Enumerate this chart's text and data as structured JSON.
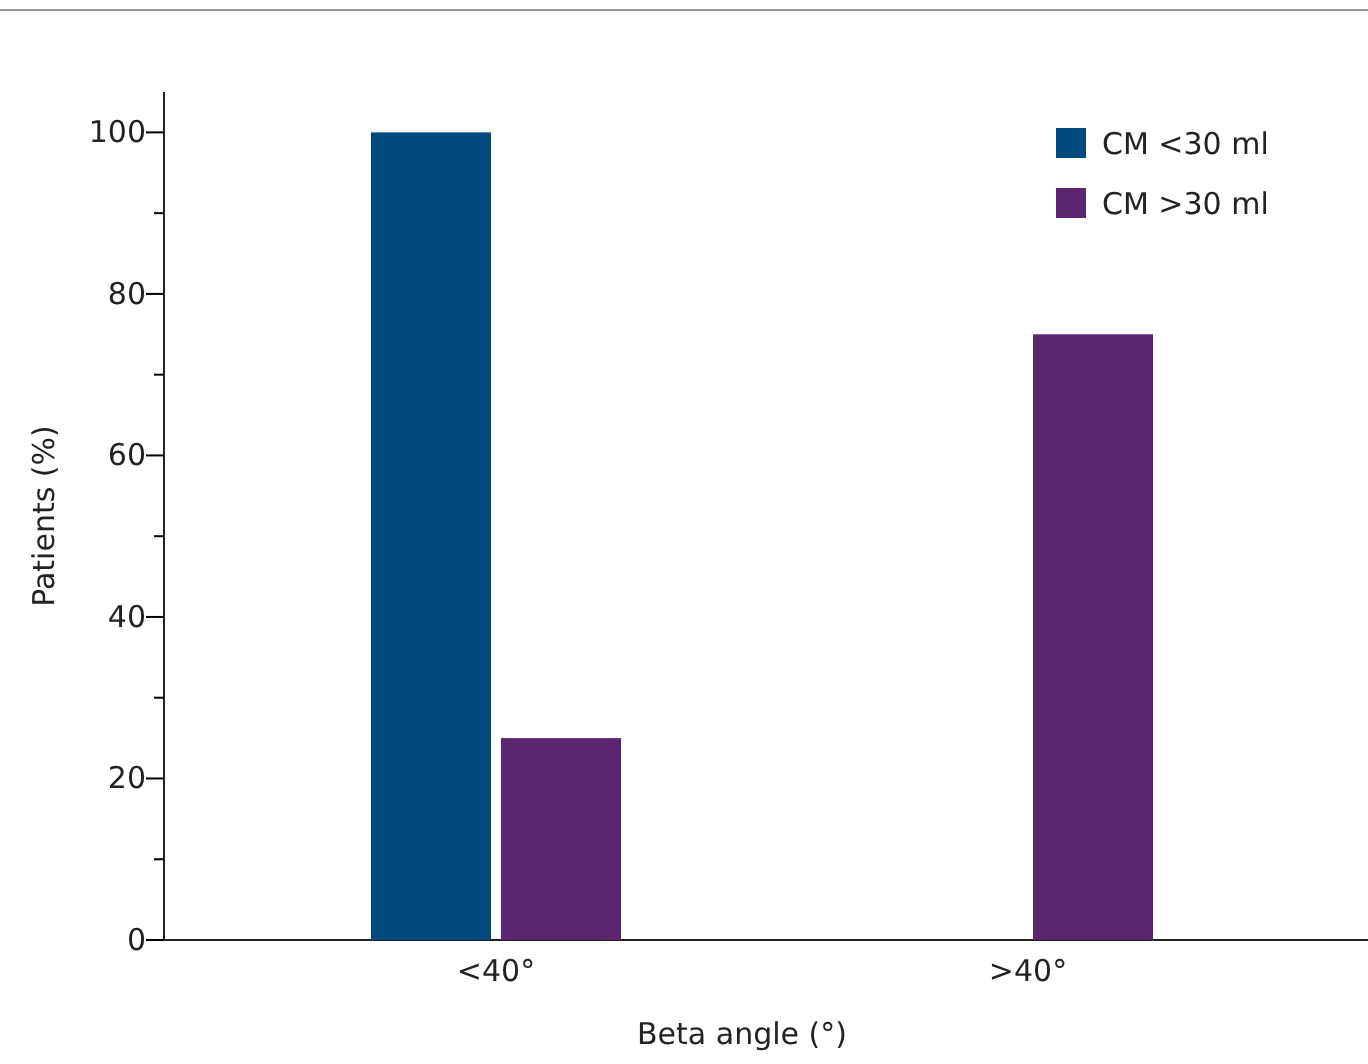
{
  "chart_data": {
    "type": "bar",
    "xlabel": "Beta angle (°)",
    "ylabel": "Patients (%)",
    "categories": [
      "<40°",
      ">40°"
    ],
    "series": [
      {
        "name": "CM <30 ml",
        "color": "#004a80",
        "values": [
          100,
          0
        ]
      },
      {
        "name": "CM >30 ml",
        "color": "#5b2570",
        "values": [
          25,
          75
        ]
      }
    ],
    "ylim": [
      0,
      105
    ],
    "yticks": [
      0,
      {
        "value": 10,
        "label": null
      },
      20,
      {
        "value": 30,
        "label": null
      },
      40,
      {
        "value": 50,
        "label": null
      },
      60,
      {
        "value": 70,
        "label": null
      },
      80,
      {
        "value": 90,
        "label": null
      },
      100
    ],
    "grid": false,
    "legend": "top right"
  }
}
